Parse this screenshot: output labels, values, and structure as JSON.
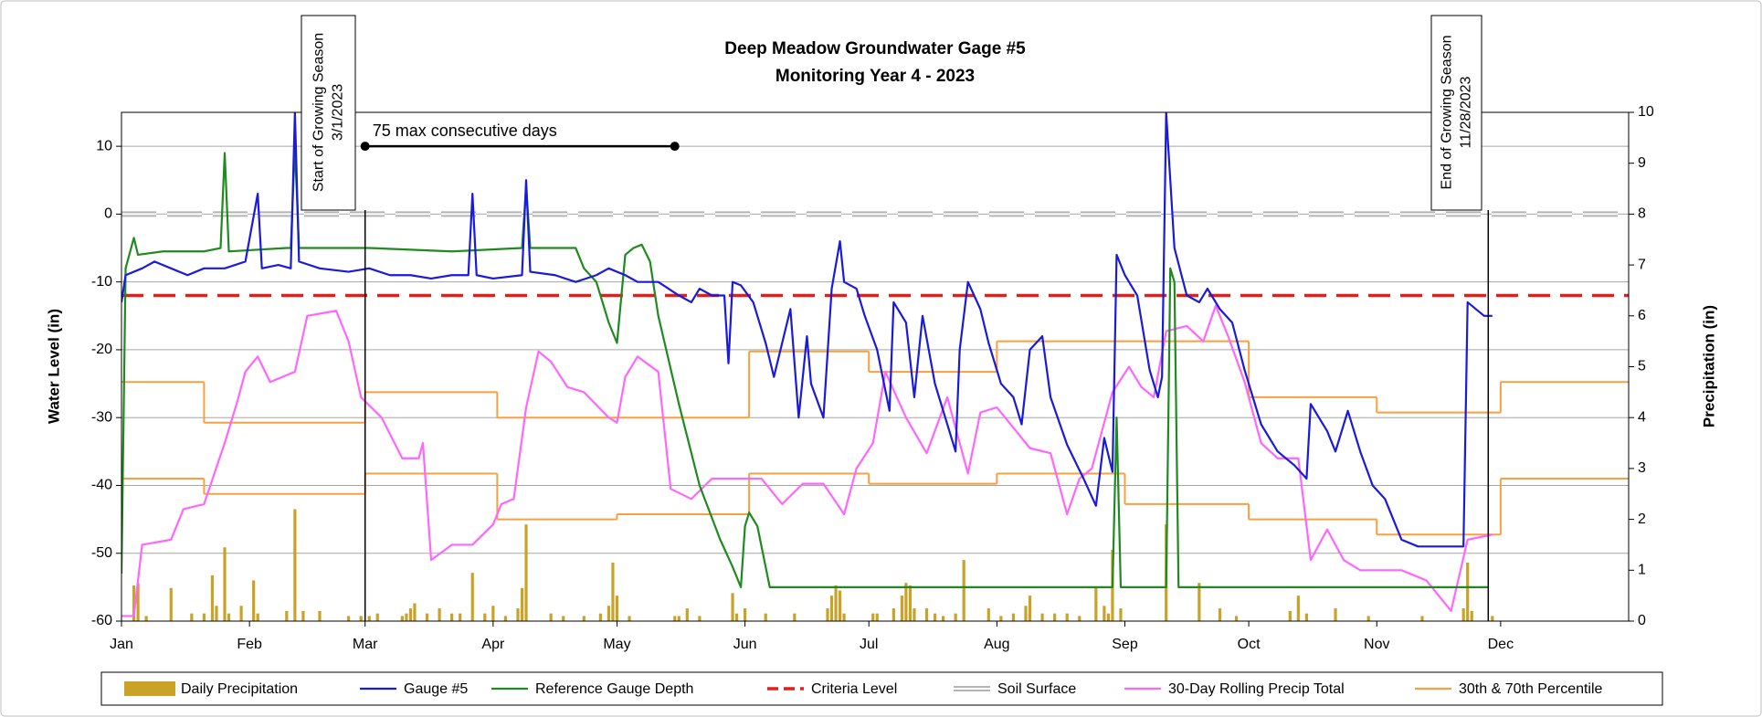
{
  "chart_data": {
    "type": "line",
    "title": "Deep Meadow Groundwater Gage #5",
    "subtitle": "Monitoring Year 4 - 2023",
    "y_label": "Water Level (in)",
    "y2_label": "Precipitation (in)",
    "xlim": [
      0,
      365
    ],
    "xticks": [
      {
        "value": 0,
        "label": "Jan"
      },
      {
        "value": 31,
        "label": "Feb"
      },
      {
        "value": 59,
        "label": "Mar"
      },
      {
        "value": 90,
        "label": "Apr"
      },
      {
        "value": 120,
        "label": "May"
      },
      {
        "value": 151,
        "label": "Jun"
      },
      {
        "value": 181,
        "label": "Jul"
      },
      {
        "value": 212,
        "label": "Aug"
      },
      {
        "value": 243,
        "label": "Sep"
      },
      {
        "value": 273,
        "label": "Oct"
      },
      {
        "value": 304,
        "label": "Nov"
      },
      {
        "value": 334,
        "label": "Dec"
      }
    ],
    "ylim": [
      -60,
      15
    ],
    "yticks": [
      -60,
      -50,
      -40,
      -30,
      -20,
      -10,
      0,
      10
    ],
    "y2lim": [
      0,
      10
    ],
    "y2ticks": [
      0,
      1,
      2,
      3,
      4,
      5,
      6,
      7,
      8,
      9,
      10
    ],
    "grid": true,
    "legend": "bottom",
    "series": [
      {
        "name": "Daily Precipitation",
        "type": "bar",
        "axis": "y2",
        "color": "#c9a227",
        "x": [
          3,
          4,
          6,
          12,
          17,
          20,
          22,
          23,
          25,
          26,
          29,
          32,
          33,
          40,
          42,
          44,
          48,
          55,
          58,
          60,
          62,
          68,
          69,
          70,
          71,
          74,
          77,
          80,
          82,
          85,
          88,
          90,
          93,
          96,
          97,
          98,
          104,
          107,
          112,
          116,
          118,
          119,
          120,
          123,
          134,
          135,
          137,
          140,
          148,
          149,
          151,
          156,
          163,
          171,
          172,
          173,
          174,
          175,
          182,
          183,
          187,
          189,
          190,
          191,
          192,
          195,
          197,
          199,
          202,
          204,
          210,
          213,
          216,
          219,
          220,
          223,
          226,
          229,
          232,
          236,
          238,
          239,
          240,
          242,
          253,
          261,
          266,
          270,
          283,
          285,
          287,
          294,
          302,
          315,
          325,
          326,
          327,
          332
        ],
        "values": [
          0.7,
          0.75,
          0.1,
          0.65,
          0.15,
          0.15,
          0.9,
          0.3,
          1.45,
          0.15,
          0.3,
          0.8,
          0.15,
          0.2,
          2.2,
          0.2,
          0.2,
          0.1,
          0.1,
          0.1,
          0.15,
          0.1,
          0.15,
          0.25,
          0.35,
          0.15,
          0.25,
          0.15,
          0.15,
          0.95,
          0.15,
          0.3,
          0.1,
          0.25,
          0.65,
          1.9,
          0.15,
          0.1,
          0.1,
          0.15,
          0.3,
          1.15,
          0.5,
          0.1,
          0.1,
          0.1,
          0.25,
          0.1,
          0.55,
          0.15,
          0.25,
          0.15,
          0.15,
          0.25,
          0.5,
          0.7,
          0.6,
          0.15,
          0.15,
          0.15,
          0.25,
          0.5,
          0.75,
          0.7,
          0.25,
          0.25,
          0.15,
          0.1,
          0.15,
          1.2,
          0.25,
          0.1,
          0.15,
          0.3,
          0.5,
          0.15,
          0.15,
          0.15,
          0.1,
          0.65,
          0.3,
          0.15,
          1.4,
          0.25,
          1.9,
          0.75,
          0.25,
          0.1,
          0.2,
          0.5,
          0.15,
          0.25,
          0.1,
          0.1,
          0.25,
          1.15,
          0.2,
          0.1
        ]
      },
      {
        "name": "Gauge #5",
        "type": "line",
        "color": "#1a1adb",
        "x": [
          0,
          1,
          5,
          8,
          12,
          16,
          20,
          25,
          30,
          33,
          34,
          38,
          41,
          42,
          43,
          48,
          55,
          60,
          65,
          70,
          75,
          80,
          84,
          85,
          86,
          90,
          97,
          98,
          99,
          105,
          110,
          115,
          118,
          122,
          125,
          130,
          135,
          138,
          140,
          143,
          146,
          147,
          148,
          150,
          153,
          156,
          158,
          162,
          164,
          166,
          167,
          170,
          172,
          174,
          175,
          178,
          180,
          183,
          186,
          187,
          190,
          192,
          194,
          197,
          202,
          203,
          205,
          208,
          210,
          213,
          216,
          218,
          220,
          223,
          225,
          229,
          233,
          236,
          238,
          240,
          241,
          243,
          246,
          249,
          251,
          252,
          253,
          255,
          258,
          261,
          263,
          266,
          269,
          272,
          276,
          280,
          284,
          287,
          288,
          292,
          294,
          297,
          300,
          303,
          306,
          310,
          314,
          325,
          326,
          330,
          332
        ],
        "values": [
          -13,
          -9,
          -8,
          -7,
          -8,
          -9,
          -8,
          -8,
          -7,
          3,
          -8,
          -7.5,
          -8,
          15,
          -7,
          -8,
          -8.5,
          -8,
          -9,
          -9,
          -9.5,
          -9,
          -9,
          3,
          -9,
          -9.5,
          -9,
          5,
          -8.5,
          -9,
          -10,
          -9,
          -8,
          -9,
          -10,
          -10,
          -12,
          -13,
          -11,
          -12,
          -12,
          -22,
          -10,
          -10.5,
          -13,
          -19,
          -24,
          -14,
          -30,
          -18,
          -25,
          -30,
          -11,
          -4,
          -10,
          -11,
          -15,
          -20,
          -29,
          -13,
          -16,
          -27,
          -15,
          -25,
          -35,
          -20,
          -10,
          -14,
          -19,
          -25,
          -27,
          -31,
          -20,
          -18,
          -27,
          -34,
          -39,
          -43,
          -33,
          -38,
          -6,
          -9,
          -12,
          -23,
          -27,
          -24,
          15,
          -5,
          -12,
          -13,
          -11,
          -14,
          -16,
          -23,
          -31,
          -35,
          -37,
          -39,
          -28,
          -32,
          -35,
          -29,
          -35,
          -40,
          -42,
          -48,
          -49,
          -49,
          -13,
          -15,
          -15
        ]
      },
      {
        "name": "Reference Gauge Depth",
        "type": "line",
        "color": "#1f8a1f",
        "x": [
          0,
          1,
          3,
          4,
          10,
          20,
          24,
          25,
          26,
          40,
          41,
          42,
          43,
          60,
          80,
          97,
          98,
          99,
          110,
          112,
          115,
          118,
          120,
          122,
          124,
          126,
          128,
          130,
          135,
          140,
          145,
          148,
          150,
          151,
          152,
          154,
          157,
          240,
          241,
          242,
          253,
          254,
          255,
          256,
          331
        ],
        "values": [
          -53,
          -8,
          -3.5,
          -6,
          -5.5,
          -5.5,
          -5,
          9,
          -5.5,
          -5,
          -5,
          10,
          -5,
          -5,
          -5.5,
          -5,
          4,
          -5,
          -5,
          -8,
          -10,
          -16,
          -19,
          -6,
          -5,
          -4.5,
          -7,
          -15,
          -28,
          -40,
          -48,
          -52,
          -55,
          -46,
          -44,
          -46,
          -55,
          -55,
          -30,
          -55,
          -55,
          -8,
          -10,
          -55,
          -55
        ]
      },
      {
        "name": "Criteria Level",
        "type": "hline",
        "style": "dashed",
        "color": "#e0201b",
        "value": -12
      },
      {
        "name": "Soil Surface",
        "type": "hline",
        "style": "double",
        "color": "#b4b4b4",
        "value": 0
      },
      {
        "name": "30-Day Rolling Precip Total",
        "type": "line",
        "axis": "y2",
        "color": "#ff66ff",
        "x": [
          0,
          3,
          5,
          12,
          15,
          20,
          25,
          28,
          30,
          33,
          36,
          42,
          45,
          52,
          55,
          58,
          63,
          68,
          72,
          73,
          75,
          80,
          85,
          90,
          92,
          95,
          98,
          101,
          104,
          108,
          112,
          118,
          120,
          122,
          125,
          130,
          133,
          138,
          143,
          148,
          155,
          160,
          165,
          170,
          175,
          178,
          182,
          185,
          190,
          195,
          200,
          205,
          208,
          212,
          216,
          220,
          225,
          229,
          232,
          235,
          240,
          244,
          247,
          250,
          253,
          258,
          262,
          265,
          268,
          272,
          276,
          280,
          285,
          288,
          292,
          296,
          300,
          310,
          316,
          322,
          326,
          332
        ],
        "values": [
          0.1,
          0.1,
          1.5,
          1.6,
          2.2,
          2.3,
          3.5,
          4.3,
          4.9,
          5.2,
          4.7,
          4.9,
          6.0,
          6.1,
          5.5,
          4.4,
          4.0,
          3.2,
          3.2,
          3.5,
          1.2,
          1.5,
          1.5,
          1.9,
          2.3,
          2.4,
          4.2,
          5.3,
          5.1,
          4.6,
          4.5,
          4.0,
          3.9,
          4.8,
          5.2,
          4.9,
          2.6,
          2.4,
          2.8,
          2.8,
          2.8,
          2.3,
          2.7,
          2.7,
          2.1,
          3.0,
          3.5,
          4.9,
          4.0,
          3.3,
          4.4,
          2.9,
          4.1,
          4.2,
          3.8,
          3.4,
          3.3,
          2.1,
          2.8,
          3.0,
          4.5,
          5.0,
          4.6,
          4.4,
          5.7,
          5.8,
          5.5,
          6.2,
          5.6,
          4.7,
          3.5,
          3.2,
          3.2,
          1.2,
          1.8,
          1.2,
          1.0,
          1.0,
          0.8,
          0.2,
          1.6,
          1.7
        ]
      },
      {
        "name": "30th & 70th Percentile",
        "type": "step",
        "axis": "y2",
        "color": "#f7a040",
        "lines": [
          {
            "x": [
              0,
              20,
              59,
              91,
              152,
              181,
              212,
              273,
              304,
              334
            ],
            "values": [
              4.7,
              3.9,
              4.5,
              4.0,
              5.3,
              4.9,
              5.5,
              4.4,
              4.1,
              4.7
            ]
          },
          {
            "x": [
              0,
              20,
              59,
              91,
              120,
              152,
              181,
              212,
              243,
              273,
              304,
              334
            ],
            "values": [
              2.8,
              2.5,
              2.9,
              2.0,
              2.1,
              2.9,
              2.7,
              2.9,
              2.3,
              2.0,
              1.7,
              2.8
            ]
          }
        ]
      }
    ],
    "annotations": [
      {
        "text": "Start of Growing Season",
        "date": "3/1/2023",
        "x": 59
      },
      {
        "text": "End of Growing Season",
        "date": "11/28/2023",
        "x": 331
      }
    ],
    "span": {
      "label": "75 max consecutive days",
      "x": [
        59,
        134
      ],
      "y": 10
    }
  }
}
